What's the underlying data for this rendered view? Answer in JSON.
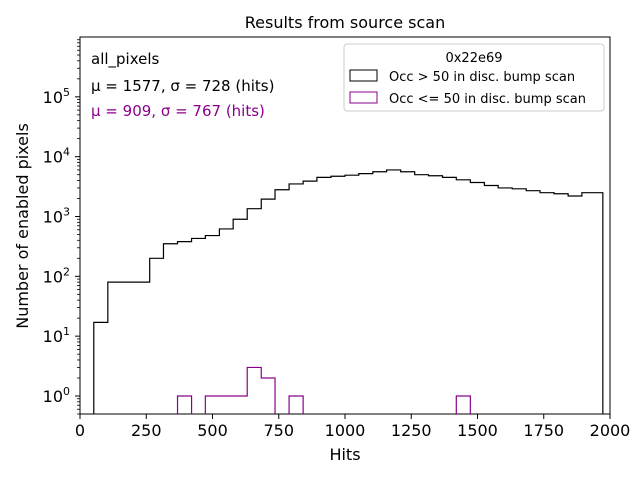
{
  "chart_data": {
    "type": "histogram",
    "title": "Results from source scan",
    "xlabel": "Hits",
    "ylabel": "Number of enabled pixels",
    "xlim": [
      0,
      2000
    ],
    "ylim_log": [
      0.5,
      1000000
    ],
    "yscale": "log",
    "x_ticks": [
      0,
      250,
      500,
      750,
      1000,
      1250,
      1500,
      1750,
      2000
    ],
    "y_ticks": [
      {
        "value": 1,
        "base": "10",
        "exp": "0"
      },
      {
        "value": 10,
        "base": "10",
        "exp": "1"
      },
      {
        "value": 100,
        "base": "10",
        "exp": "2"
      },
      {
        "value": 1000,
        "base": "10",
        "exp": "3"
      },
      {
        "value": 10000,
        "base": "10",
        "exp": "4"
      },
      {
        "value": 100000,
        "base": "10",
        "exp": "5"
      }
    ],
    "annotations": {
      "line1": "all_pixels",
      "line2": "μ = 1577, σ = 728 (hits)",
      "line3": "μ = 909, σ = 767 (hits)"
    },
    "legend": {
      "title": "0x22e69",
      "position": "top-right"
    },
    "series": [
      {
        "name": "Occ > 50 in disc. bump scan",
        "color": "#000000",
        "edges": [
          52,
          105,
          210,
          263,
          315,
          368,
          421,
          473,
          526,
          578,
          631,
          684,
          736,
          789,
          842,
          894,
          947,
          1000,
          1052,
          1105,
          1157,
          1210,
          1263,
          1315,
          1368,
          1420,
          1473,
          1526,
          1578,
          1631,
          1684,
          1736,
          1789,
          1842,
          1894,
          1973
        ],
        "counts": [
          17,
          80,
          80,
          200,
          350,
          380,
          430,
          480,
          620,
          900,
          1350,
          1950,
          2800,
          3500,
          3900,
          4500,
          4700,
          4900,
          5200,
          5600,
          6000,
          5600,
          5000,
          4800,
          4500,
          4100,
          3700,
          3300,
          3000,
          2900,
          2700,
          2500,
          2400,
          2200,
          2500
        ]
      },
      {
        "name": "Occ <= 50 in disc. bump scan",
        "color": "#8b008b",
        "bins": [
          {
            "x0": 368,
            "x1": 421,
            "count": 1
          },
          {
            "x0": 473,
            "x1": 631,
            "count": 1
          },
          {
            "x0": 631,
            "x1": 684,
            "count": 3
          },
          {
            "x0": 684,
            "x1": 736,
            "count": 2
          },
          {
            "x0": 789,
            "x1": 842,
            "count": 1
          },
          {
            "x0": 1420,
            "x1": 1473,
            "count": 1
          }
        ]
      }
    ]
  }
}
